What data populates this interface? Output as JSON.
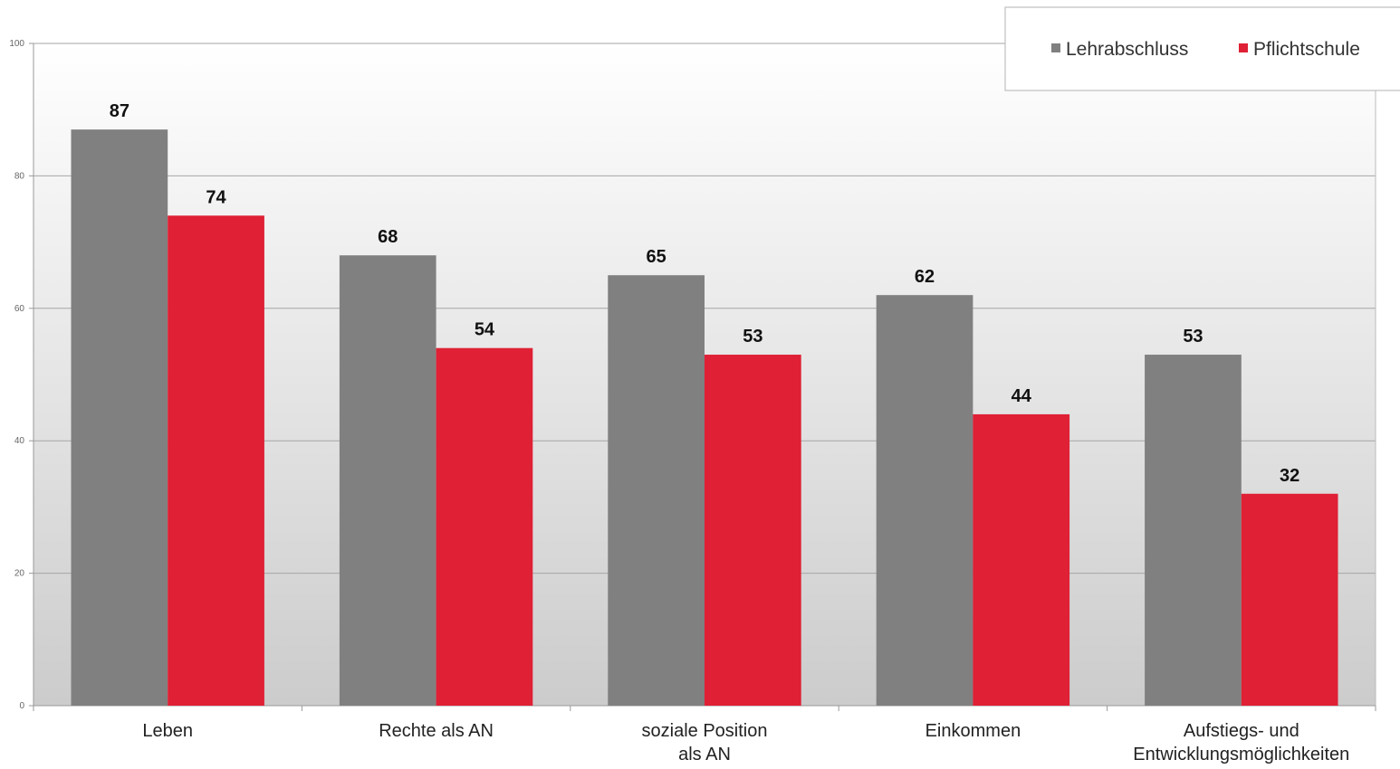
{
  "chart_data": {
    "type": "bar",
    "categories": [
      [
        "Leben"
      ],
      [
        "Rechte als AN"
      ],
      [
        "soziale Position",
        "als AN"
      ],
      [
        "Einkommen"
      ],
      [
        "Aufstiegs- und",
        "Entwicklungsmöglichkeiten"
      ]
    ],
    "series": [
      {
        "name": "Lehrabschluss",
        "color": "#808080",
        "values": [
          87,
          68,
          65,
          62,
          53
        ]
      },
      {
        "name": "Pflichtschule",
        "color": "#df2035",
        "values": [
          74,
          54,
          53,
          44,
          32
        ]
      }
    ],
    "ylim": [
      0,
      100
    ],
    "yticks": [
      "0",
      "20",
      "40",
      "60",
      "80",
      "100"
    ],
    "grid": true,
    "legend_position": "top-right",
    "background_gradient": [
      "#ffffff",
      "#cccccc"
    ]
  }
}
